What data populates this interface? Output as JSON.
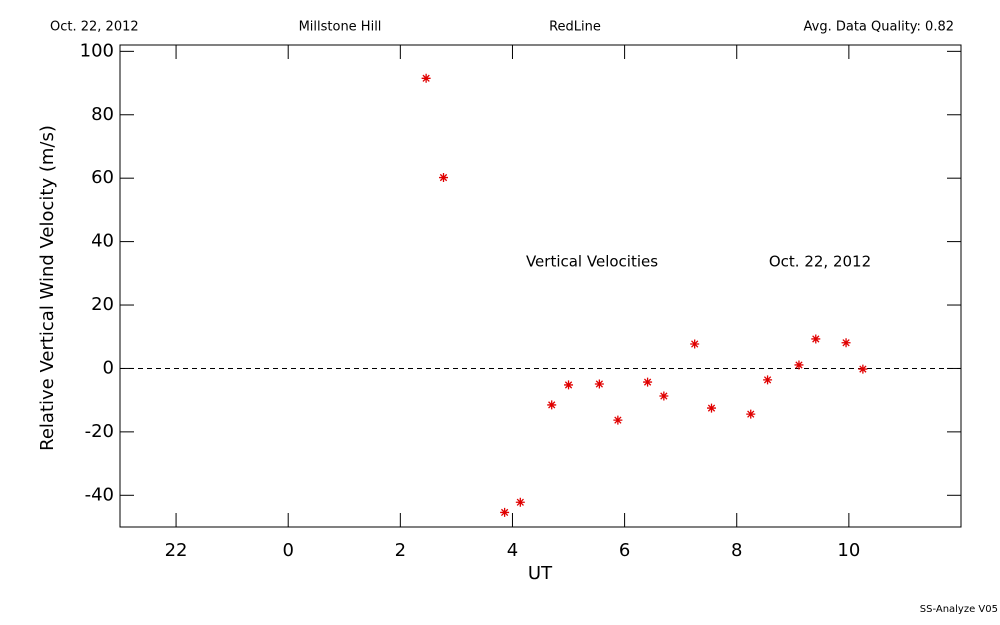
{
  "chart_data": {
    "type": "scatter",
    "header": [
      "Oct. 22, 2012",
      "Millstone Hill",
      "RedLine",
      "Avg. Data Quality: 0.82"
    ],
    "annotations": [
      "Vertical Velocities",
      "Oct. 22, 2012"
    ],
    "footer": "SS-Analyze V05",
    "xlabel": "UT",
    "ylabel": "Relative Vertical Wind Velocity (m/s)",
    "xlim": [
      -3,
      12
    ],
    "ylim": [
      -50,
      102
    ],
    "xticks": [
      {
        "value": -2,
        "label": "22"
      },
      0,
      2,
      4,
      6,
      8,
      10
    ],
    "yticks": [
      -40,
      -20,
      0,
      20,
      40,
      60,
      80,
      100
    ],
    "hline": 0,
    "color": "#e00000",
    "x": [
      2.46,
      2.77,
      3.86,
      4.14,
      4.7,
      5.0,
      5.55,
      5.88,
      6.41,
      6.7,
      7.25,
      7.55,
      8.25,
      8.55,
      9.11,
      9.41,
      9.95,
      10.25
    ],
    "values": [
      91.5,
      60.2,
      -45.4,
      -42.2,
      -11.5,
      -5.2,
      -4.9,
      -16.3,
      -4.3,
      -8.7,
      7.7,
      -12.5,
      -14.4,
      -3.6,
      1.1,
      9.3,
      8.1,
      -0.2
    ]
  }
}
